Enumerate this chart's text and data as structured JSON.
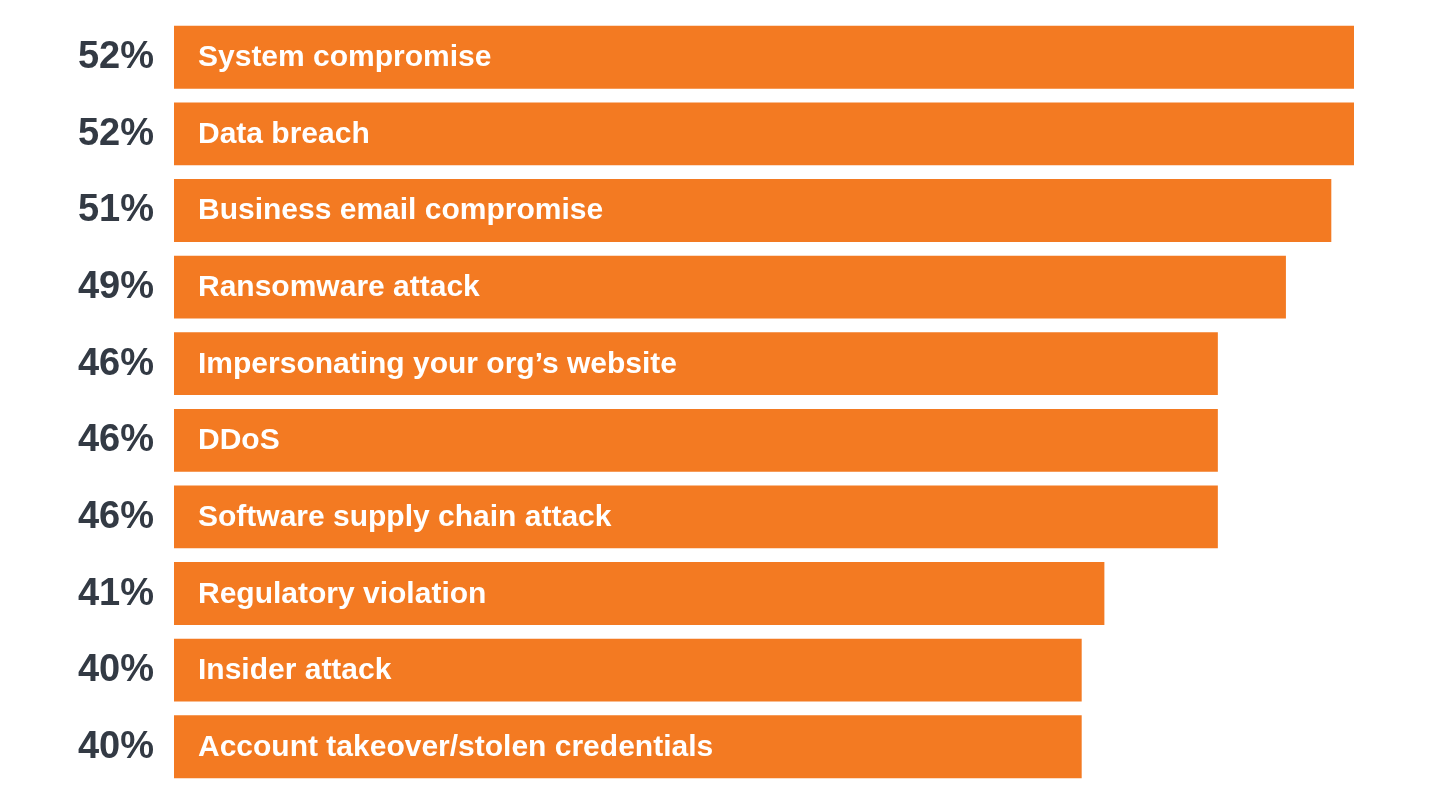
{
  "chart_data": {
    "type": "bar",
    "orientation": "horizontal",
    "categories": [
      "System compromise",
      "Data breach",
      "Business email compromise",
      "Ransomware attack",
      "Impersonating your org’s website",
      "DDoS",
      "Software supply chain attack",
      "Regulatory violation",
      "Insider attack",
      "Account takeover/stolen credentials"
    ],
    "values": [
      52,
      52,
      51,
      49,
      46,
      46,
      46,
      41,
      40,
      40
    ],
    "value_labels": [
      "52%",
      "52%",
      "51%",
      "49%",
      "46%",
      "46%",
      "46%",
      "41%",
      "40%",
      "40%"
    ],
    "color": "#f37a22",
    "grid": false,
    "legend": false
  }
}
